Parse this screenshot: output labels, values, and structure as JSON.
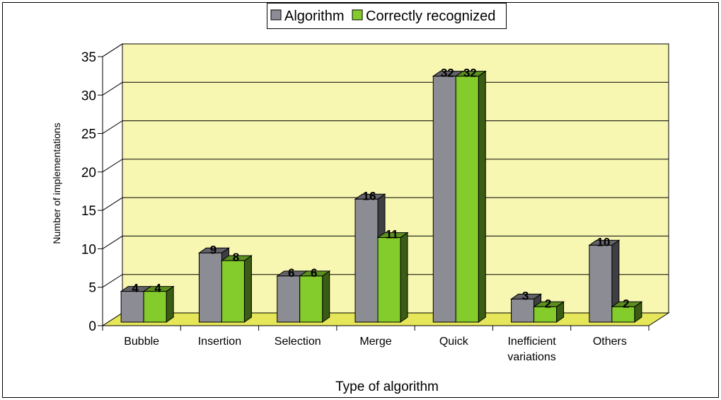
{
  "chart_data": {
    "type": "bar",
    "title": "",
    "xlabel": "Type of algorithm",
    "ylabel": "Number of implementations",
    "categories": [
      "Bubble",
      "Insertion",
      "Selection",
      "Merge",
      "Quick",
      "Inefficient variations",
      "Others"
    ],
    "series": [
      {
        "name": "Algorithm",
        "values": [
          4,
          9,
          6,
          16,
          32,
          3,
          10
        ]
      },
      {
        "name": "Correctly recognized",
        "values": [
          4,
          8,
          6,
          11,
          32,
          2,
          2
        ]
      }
    ],
    "ylim": [
      0,
      35
    ],
    "yticks": [
      0,
      5,
      10,
      15,
      20,
      25,
      30,
      35
    ],
    "grid": true,
    "legend": "top",
    "data_labels": true,
    "colors": {
      "series": [
        "#8c8c94",
        "#84cc2c"
      ],
      "wall": "#f7f7b2",
      "floor": "#e6e65a"
    }
  }
}
